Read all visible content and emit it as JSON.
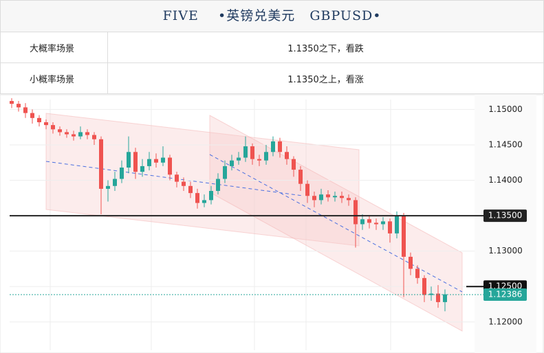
{
  "header": {
    "title": "FIVE    •英镑兑美元   GBPUSD•"
  },
  "table": {
    "rows": [
      [
        "大概率场景",
        "1.1350之下，看跌"
      ],
      [
        "小概率场景",
        "1.1350之上，看涨"
      ]
    ]
  },
  "chart_data": {
    "type": "candlestick",
    "ylim": [
      1.116,
      1.1514
    ],
    "yticks": [
      {
        "value": 1.12,
        "label": "1.12000"
      },
      {
        "value": 1.125,
        "label": "1.12500"
      },
      {
        "value": 1.13,
        "label": "1.13000"
      },
      {
        "value": 1.135,
        "label": "1.13500"
      },
      {
        "value": 1.14,
        "label": "1.14000"
      },
      {
        "value": 1.145,
        "label": "1.14500"
      },
      {
        "value": 1.15,
        "label": "1.15000"
      }
    ],
    "grid": true,
    "up_color": "#26a69a",
    "down_color": "#ef5350",
    "open": [
      1.1512,
      1.1508,
      1.1503,
      1.1495,
      1.1488,
      1.1482,
      1.1478,
      1.1472,
      1.1468,
      1.1465,
      1.1462,
      1.1468,
      1.1464,
      1.1458,
      1.1388,
      1.1392,
      1.1402,
      1.1418,
      1.144,
      1.1412,
      1.142,
      1.143,
      1.1425,
      1.1432,
      1.1408,
      1.1398,
      1.1392,
      1.1382,
      1.1368,
      1.1372,
      1.1385,
      1.1402,
      1.142,
      1.1428,
      1.1432,
      1.1448,
      1.143,
      1.1428,
      1.144,
      1.1455,
      1.144,
      1.143,
      1.1415,
      1.1395,
      1.1378,
      1.1372,
      1.138,
      1.1376,
      1.1378,
      1.1375,
      1.1372,
      1.1338,
      1.1345,
      1.134,
      1.1338,
      1.1342,
      1.1325,
      1.135,
      1.1292,
      1.1275,
      1.1262,
      1.1238,
      1.124,
      1.1228
    ],
    "high": [
      1.1516,
      1.1512,
      1.1509,
      1.15,
      1.1492,
      1.1486,
      1.1482,
      1.1476,
      1.1472,
      1.147,
      1.1476,
      1.1472,
      1.1468,
      1.1462,
      1.14,
      1.1412,
      1.1428,
      1.1462,
      1.1446,
      1.143,
      1.144,
      1.1438,
      1.1448,
      1.1436,
      1.1412,
      1.1404,
      1.1398,
      1.1388,
      1.138,
      1.1392,
      1.141,
      1.1428,
      1.1436,
      1.144,
      1.1462,
      1.1452,
      1.1436,
      1.145,
      1.1462,
      1.146,
      1.1448,
      1.1434,
      1.142,
      1.14,
      1.1384,
      1.1388,
      1.1386,
      1.1384,
      1.1384,
      1.138,
      1.1376,
      1.1352,
      1.135,
      1.1346,
      1.1348,
      1.1346,
      1.1356,
      1.1354,
      1.1298,
      1.128,
      1.1266,
      1.125,
      1.1252,
      1.1246
    ],
    "low": [
      1.1502,
      1.1497,
      1.1488,
      1.148,
      1.1476,
      1.1472,
      1.1466,
      1.1463,
      1.146,
      1.1456,
      1.1458,
      1.1458,
      1.145,
      1.1352,
      1.137,
      1.1385,
      1.1396,
      1.141,
      1.1402,
      1.1405,
      1.1414,
      1.1418,
      1.142,
      1.14,
      1.139,
      1.1385,
      1.1375,
      1.136,
      1.1362,
      1.1366,
      1.138,
      1.1396,
      1.1414,
      1.1422,
      1.1426,
      1.1422,
      1.142,
      1.1422,
      1.1434,
      1.1432,
      1.1422,
      1.1405,
      1.1385,
      1.1368,
      1.1362,
      1.1366,
      1.137,
      1.137,
      1.1368,
      1.1364,
      1.1305,
      1.133,
      1.1332,
      1.133,
      1.133,
      1.1312,
      1.1318,
      1.1235,
      1.1266,
      1.1254,
      1.1228,
      1.123,
      1.122,
      1.1215
    ],
    "close": [
      1.1508,
      1.1503,
      1.1495,
      1.1488,
      1.1482,
      1.1478,
      1.1472,
      1.1468,
      1.1465,
      1.1462,
      1.1468,
      1.1464,
      1.1458,
      1.1388,
      1.1392,
      1.1402,
      1.1418,
      1.144,
      1.1412,
      1.142,
      1.143,
      1.1425,
      1.1432,
      1.1408,
      1.1398,
      1.1392,
      1.1382,
      1.1368,
      1.1372,
      1.1385,
      1.1402,
      1.142,
      1.1428,
      1.1432,
      1.1448,
      1.143,
      1.1428,
      1.144,
      1.1455,
      1.144,
      1.143,
      1.1415,
      1.1395,
      1.1378,
      1.1372,
      1.138,
      1.1376,
      1.1378,
      1.1375,
      1.1372,
      1.1338,
      1.1345,
      1.134,
      1.1338,
      1.1342,
      1.1325,
      1.135,
      1.1292,
      1.1275,
      1.1262,
      1.1238,
      1.124,
      1.1228,
      1.1239
    ],
    "levels": [
      {
        "value": 1.135,
        "label": "1.13500",
        "color": "#222222",
        "style": "full"
      },
      {
        "value": 1.125,
        "label": "1.12500",
        "color": "#111111",
        "style": "short"
      },
      {
        "value": 1.12386,
        "label": "1.12386",
        "color": "#26a69a",
        "style": "dotted"
      }
    ]
  }
}
